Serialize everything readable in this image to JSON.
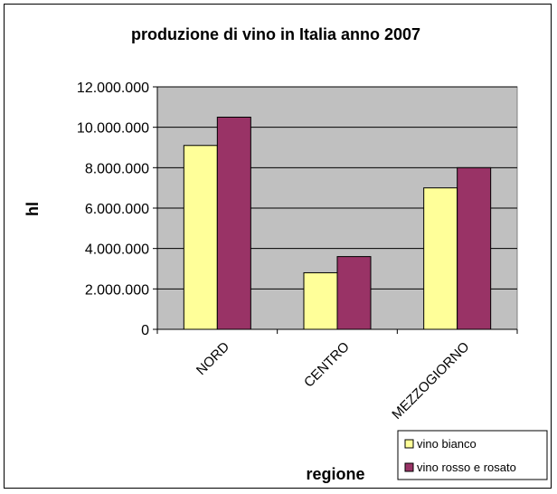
{
  "chart_data": {
    "type": "bar",
    "title": "produzione di vino in Italia anno 2007",
    "xlabel": "regione",
    "ylabel": "hl",
    "categories": [
      "NORD",
      "CENTRO",
      "MEZZOGIORNO"
    ],
    "series": [
      {
        "name": "vino bianco",
        "color": "#ffff99",
        "values": [
          9100000,
          2800000,
          7000000
        ]
      },
      {
        "name": "vino rosso e rosato",
        "color": "#993366",
        "values": [
          10500000,
          3600000,
          8000000
        ]
      }
    ],
    "ylim": [
      0,
      12000000
    ],
    "yticks": [
      0,
      2000000,
      4000000,
      6000000,
      8000000,
      10000000,
      12000000
    ],
    "ytick_labels": [
      "0",
      "2.000.000",
      "4.000.000",
      "6.000.000",
      "8.000.000",
      "10.000.000",
      "12.000.000"
    ],
    "grid": true,
    "plot_background": "#c0c0c0",
    "legend_position": "bottom-right"
  }
}
